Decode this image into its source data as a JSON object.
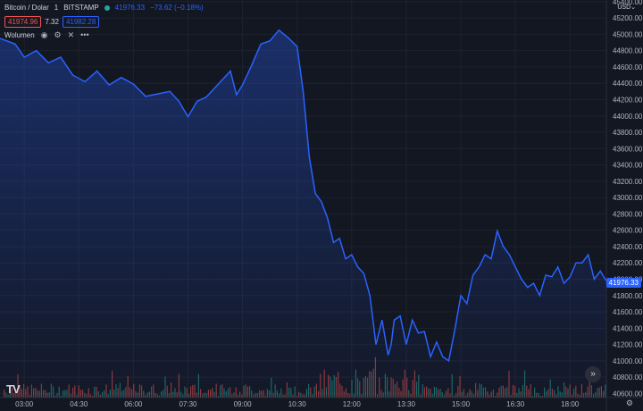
{
  "header": {
    "symbol": "Bitcoin / Dolar",
    "interval": "1",
    "exchange": "BITSTAMP",
    "last": "41976.33",
    "change": "−73.62 (−0.18%)"
  },
  "quote": {
    "bid": "41974.96",
    "spread": "7.32",
    "ask": "41982.28"
  },
  "indicator": {
    "label": "Wolumen",
    "icons": [
      "eye-icon",
      "settings-icon",
      "close-icon",
      "more-icon"
    ]
  },
  "currency": "USD",
  "current_price_label": "41976.33",
  "scroll_icon": "»",
  "logo": "TV",
  "colors": {
    "line": "#2962ff",
    "up": "#26a69a",
    "down": "#ef5350",
    "bg": "#131722"
  },
  "chart_data": {
    "type": "area",
    "y_ticks": [
      "45400.00",
      "45200.00",
      "45000.00",
      "44800.00",
      "44600.00",
      "44400.00",
      "44200.00",
      "44000.00",
      "43800.00",
      "43600.00",
      "43400.00",
      "43200.00",
      "43000.00",
      "42800.00",
      "42600.00",
      "42400.00",
      "42200.00",
      "42000.00",
      "41800.00",
      "41600.00",
      "41400.00",
      "41200.00",
      "41000.00",
      "40800.00",
      "40600.00"
    ],
    "x_ticks": [
      "03:00",
      "04:30",
      "06:00",
      "07:30",
      "09:00",
      "10:30",
      "12:00",
      "13:30",
      "15:00",
      "16:30",
      "18:00"
    ],
    "ylim": [
      40550,
      45420
    ],
    "xlim": [
      "02:20",
      "19:00"
    ],
    "series": [
      {
        "x": [
          "02:20",
          "02:45",
          "03:00",
          "03:20",
          "03:40",
          "04:00",
          "04:20",
          "04:40",
          "05:00",
          "05:20",
          "05:40",
          "06:00",
          "06:20",
          "06:40",
          "07:00",
          "07:15",
          "07:30",
          "07:45",
          "08:00",
          "08:20",
          "08:40",
          "08:50",
          "09:00",
          "09:15",
          "09:30",
          "09:45",
          "10:00",
          "10:15",
          "10:30",
          "10:40",
          "10:50",
          "11:00",
          "11:10",
          "11:20",
          "11:30",
          "11:40",
          "11:50",
          "12:00",
          "12:10",
          "12:20",
          "12:30",
          "12:40",
          "12:50",
          "13:00",
          "13:05",
          "13:10",
          "13:20",
          "13:30",
          "13:40",
          "13:50",
          "14:00",
          "14:10",
          "14:20",
          "14:30",
          "14:40",
          "14:50",
          "15:00",
          "15:10",
          "15:20",
          "15:30",
          "15:40",
          "15:50",
          "16:00",
          "16:10",
          "16:20",
          "16:30",
          "16:40",
          "16:50",
          "17:00",
          "17:10",
          "17:20",
          "17:30",
          "17:40",
          "17:50",
          "18:00",
          "18:10",
          "18:20",
          "18:30",
          "18:40",
          "18:50",
          "19:00"
        ],
        "y": [
          44950,
          44880,
          44720,
          44800,
          44650,
          44720,
          44500,
          44420,
          44550,
          44380,
          44470,
          44390,
          44240,
          44270,
          44300,
          44180,
          43990,
          44180,
          44230,
          44390,
          44550,
          44260,
          44380,
          44620,
          44880,
          44920,
          45050,
          44960,
          44850,
          44300,
          43500,
          43050,
          42950,
          42750,
          42450,
          42500,
          42250,
          42300,
          42150,
          42070,
          41800,
          41200,
          41500,
          41070,
          41200,
          41500,
          41550,
          41200,
          41500,
          41340,
          41360,
          41050,
          41230,
          41050,
          41000,
          41380,
          41800,
          41700,
          42050,
          42150,
          42300,
          42250,
          42590,
          42400,
          42300,
          42150,
          42000,
          41900,
          41950,
          41800,
          42050,
          42030,
          42150,
          41950,
          42030,
          42200,
          42200,
          42300,
          42000,
          42100,
          41976
        ]
      }
    ]
  }
}
